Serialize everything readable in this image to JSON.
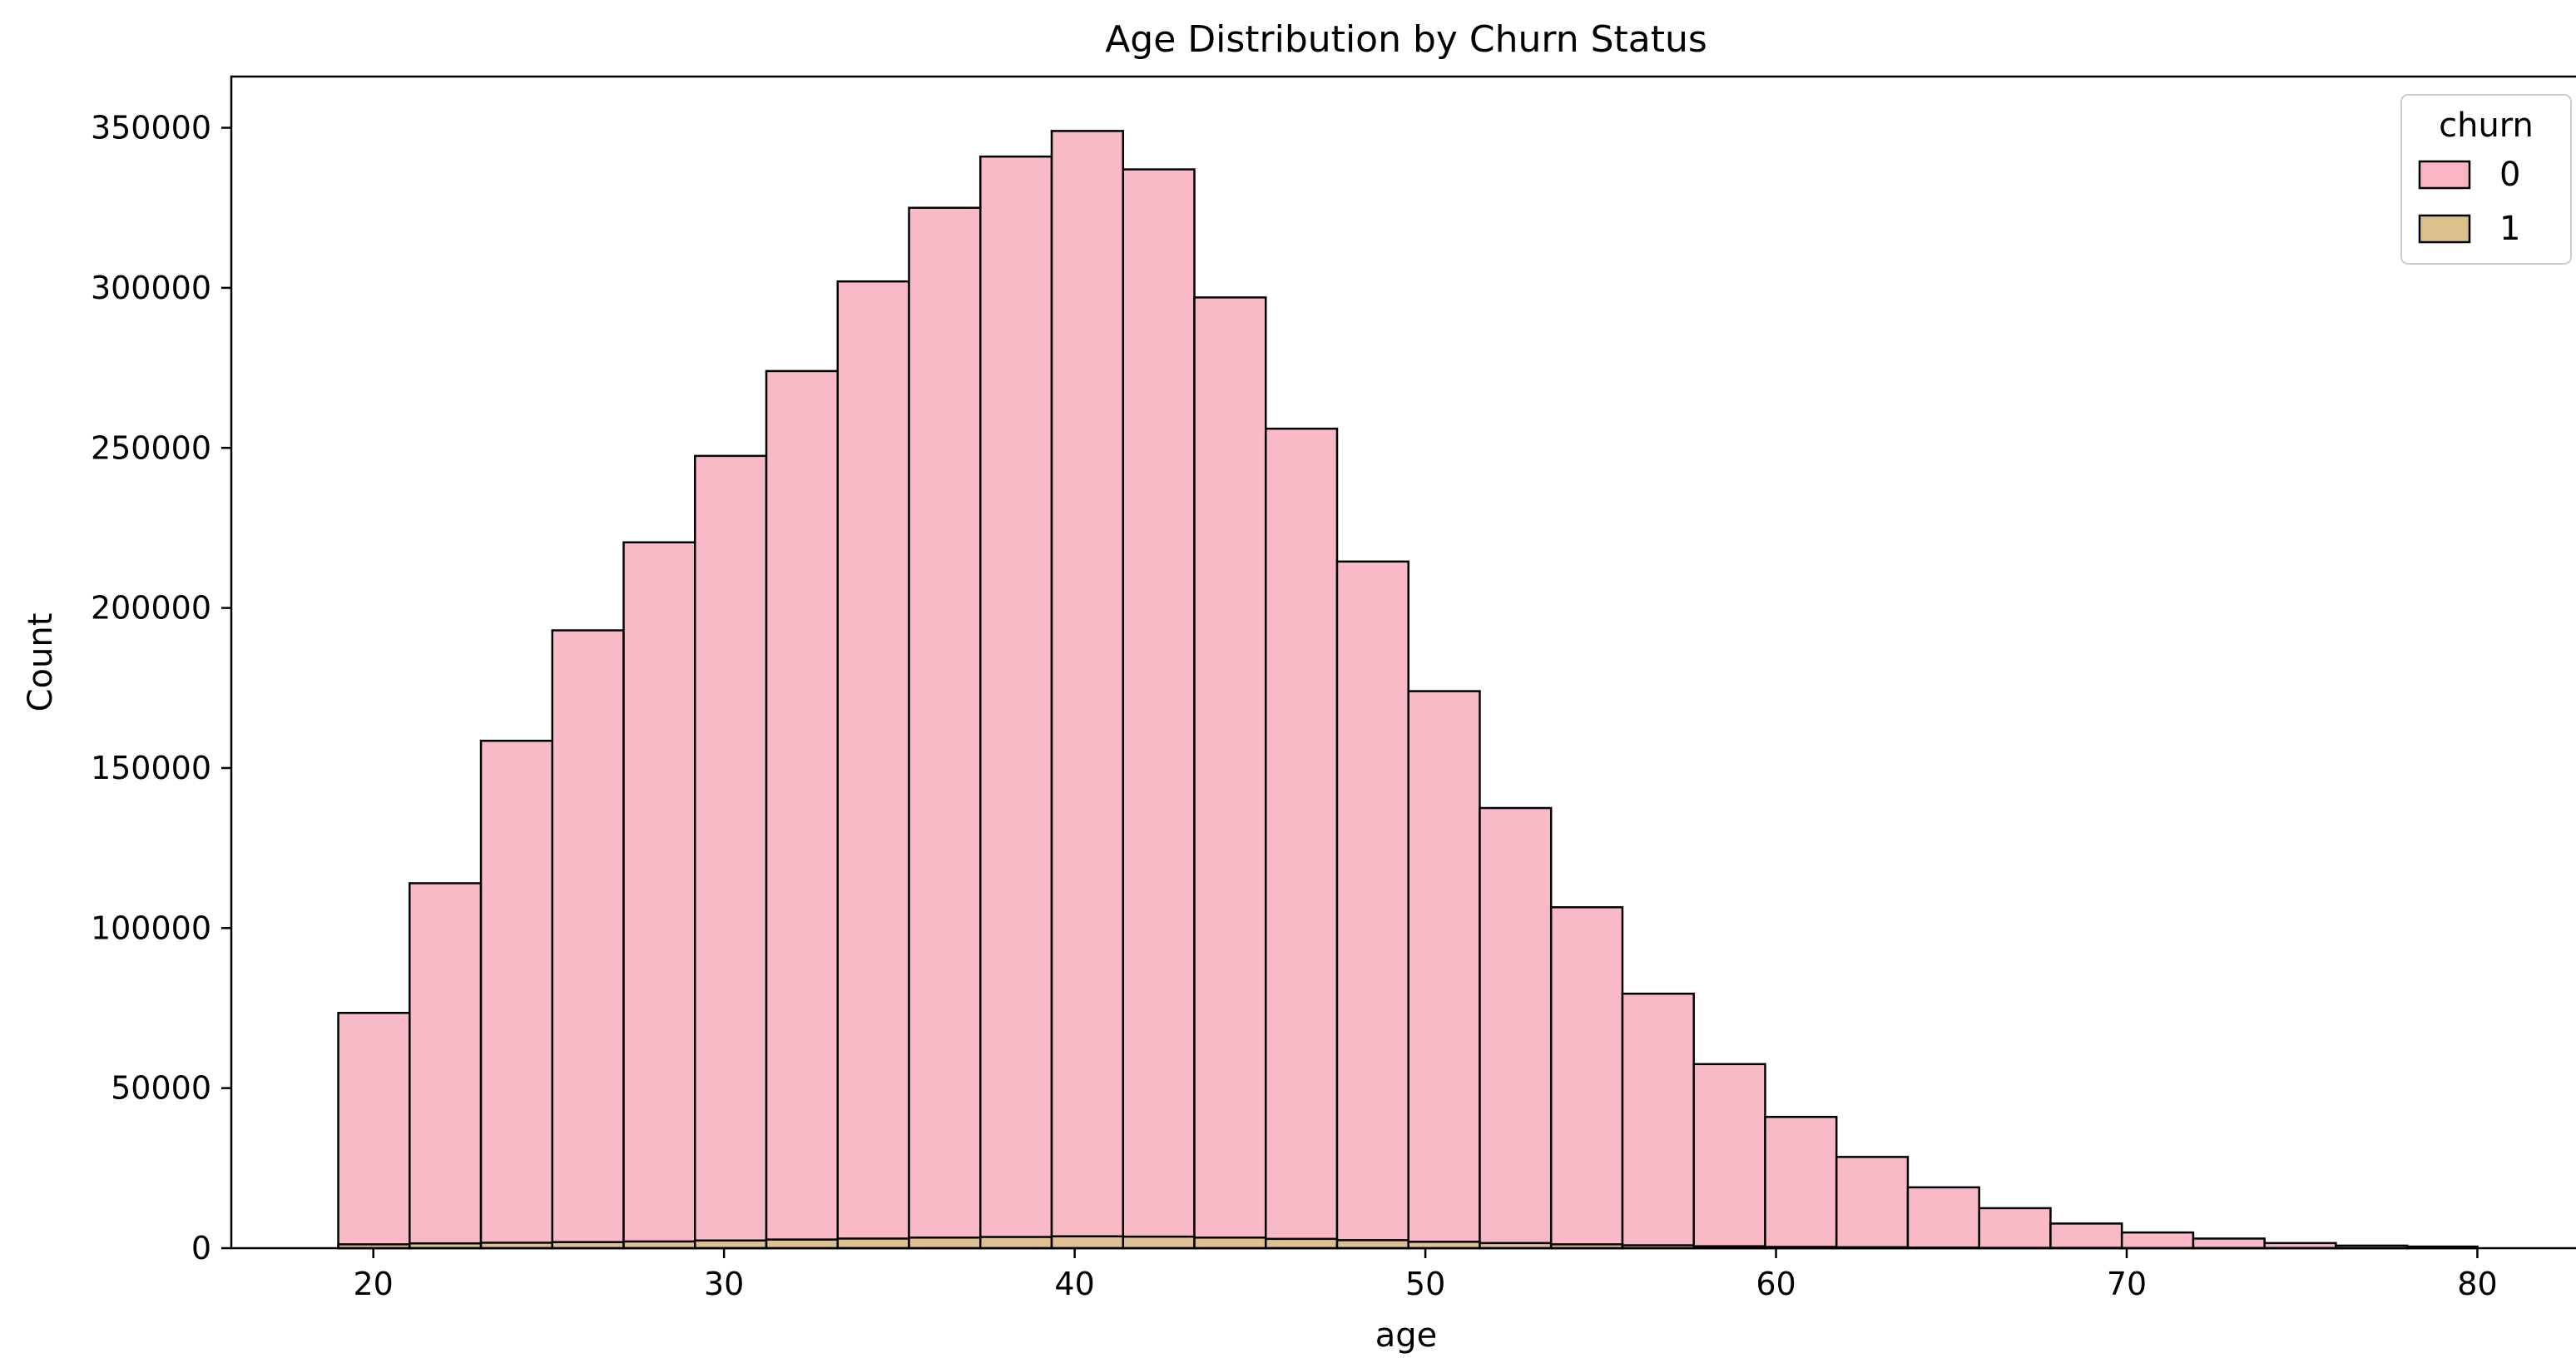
{
  "chart_data": {
    "type": "bar",
    "title": "Age Distribution by Churn Status",
    "xlabel": "age",
    "ylabel": "Count",
    "xlim": [
      15.95,
      83.05
    ],
    "ylim": [
      0,
      366000
    ],
    "xticks": [
      20,
      30,
      40,
      50,
      60,
      70,
      80
    ],
    "yticks": [
      0,
      50000,
      100000,
      150000,
      200000,
      250000,
      300000,
      350000
    ],
    "bin_edges": [
      19.0,
      21.0345,
      23.069,
      25.1034,
      27.1379,
      29.1724,
      31.2069,
      33.2414,
      35.2759,
      37.3103,
      39.3448,
      41.3793,
      43.4138,
      45.4483,
      47.4828,
      49.5172,
      51.5517,
      53.5862,
      55.6207,
      57.6552,
      59.6897,
      61.7241,
      63.7586,
      65.7931,
      67.8276,
      69.8621,
      71.8966,
      73.931,
      75.9655,
      78.0,
      80.0
    ],
    "grid": false,
    "legend": {
      "title": "churn",
      "position": "top-right"
    },
    "series": [
      {
        "name": "0",
        "color": "#f9b5c4",
        "values": [
          73500,
          114000,
          158500,
          193000,
          220500,
          247500,
          274000,
          302000,
          325000,
          341000,
          349000,
          337000,
          297000,
          256000,
          214500,
          174000,
          137500,
          106500,
          79500,
          57500,
          41000,
          28500,
          19000,
          12500,
          7700,
          4900,
          3000,
          1600,
          800,
          500
        ]
      },
      {
        "name": "1",
        "color": "#dcc08f",
        "values": [
          1200,
          1500,
          1700,
          1900,
          2100,
          2400,
          2700,
          3000,
          3300,
          3500,
          3700,
          3600,
          3300,
          2900,
          2500,
          2000,
          1600,
          1200,
          900,
          600,
          400,
          300,
          200,
          100,
          100,
          50,
          30,
          20,
          10,
          10
        ]
      }
    ]
  }
}
